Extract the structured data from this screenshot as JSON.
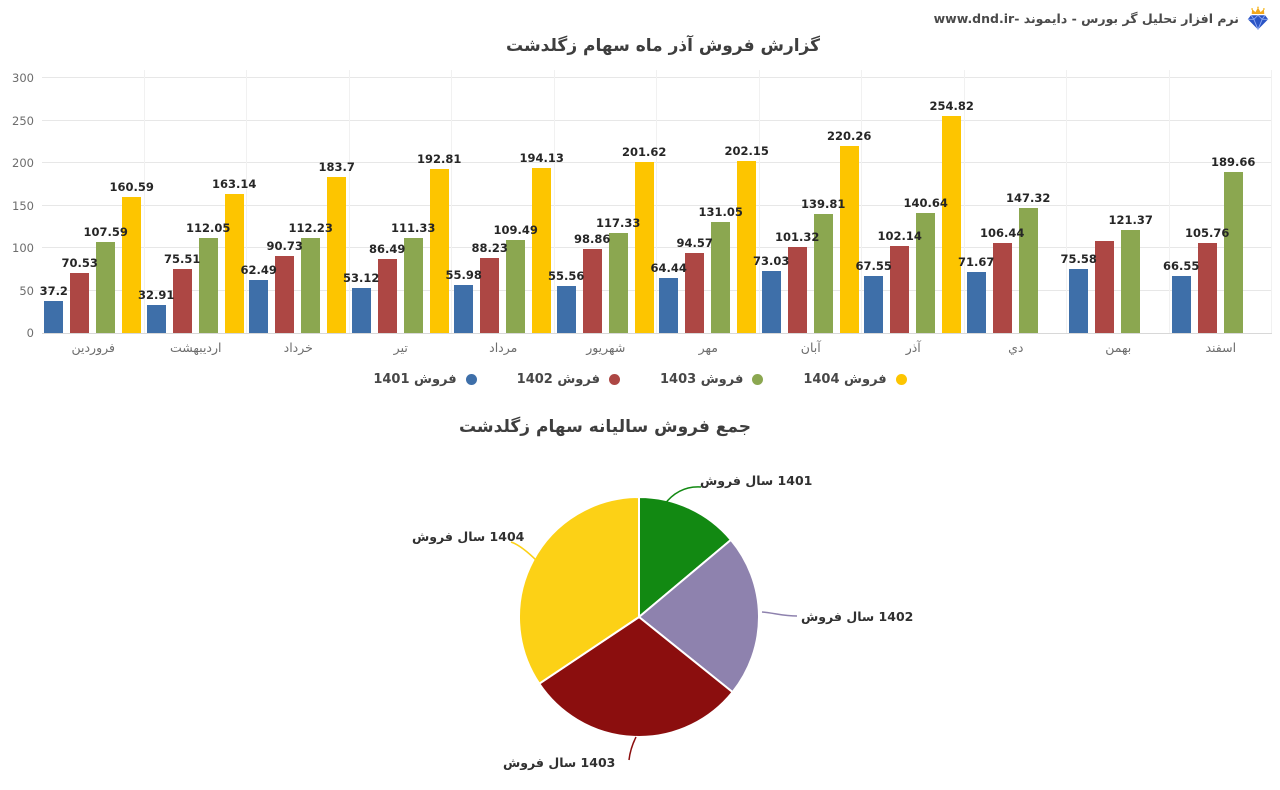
{
  "header": {
    "text": "نرم افزار تحلیل گر بورس - دایموند -www.dnd.ir",
    "logo_icon": "diamond-crown-icon"
  },
  "chart_data": [
    {
      "type": "bar",
      "title": "گزارش فروش آذر ماه سهام زگلدشت",
      "categories": [
        "فروردین",
        "اردیبهشت",
        "خرداد",
        "تیر",
        "مرداد",
        "شهریور",
        "مهر",
        "آبان",
        "آذر",
        "دي",
        "بهمن",
        "اسفند"
      ],
      "series": [
        {
          "name": "فروش 1401",
          "color": "#3e6fa9",
          "values": [
            37.2,
            32.91,
            62.49,
            53.12,
            55.98,
            55.56,
            64.44,
            73.03,
            67.55,
            71.67,
            75.58,
            66.55
          ],
          "labels": [
            "37.2",
            "32.91",
            "62.49",
            "53.12",
            "55.98",
            "55.56",
            "64.44",
            "73.03",
            "67.55",
            "71.67",
            "75.58",
            "66.55"
          ]
        },
        {
          "name": "فروش 1402",
          "color": "#ad4744",
          "values": [
            70.53,
            75.51,
            90.73,
            86.49,
            88.23,
            98.86,
            94.57,
            101.32,
            102.14,
            106.44,
            108,
            105.76
          ],
          "labels": [
            "70.53",
            "75.51",
            "90.73",
            "86.49",
            "88.23",
            "98.86",
            "94.57",
            "101.32",
            "102.14",
            "106.44",
            "",
            "105.76"
          ]
        },
        {
          "name": "فروش 1403",
          "color": "#8ba750",
          "values": [
            107.59,
            112.05,
            112.23,
            111.33,
            109.49,
            117.33,
            131.05,
            139.81,
            140.64,
            147.32,
            121.37,
            189.66
          ],
          "labels": [
            "107.59",
            "112.05",
            "112.23",
            "111.33",
            "109.49",
            "117.33",
            "131.05",
            "139.81",
            "140.64",
            "147.32",
            "121.37",
            "189.66"
          ]
        },
        {
          "name": "فروش 1404",
          "color": "#fdc500",
          "values": [
            160.59,
            163.14,
            183.7,
            192.81,
            194.13,
            201.62,
            202.15,
            220.26,
            254.82,
            null,
            null,
            null
          ],
          "labels": [
            "160.59",
            "163.14",
            "183.7",
            "192.81",
            "194.13",
            "201.62",
            "202.15",
            "220.26",
            "254.82",
            "",
            "",
            ""
          ]
        }
      ],
      "ylim": [
        0,
        300
      ],
      "yticks": [
        0,
        50,
        100,
        150,
        200,
        250,
        300
      ],
      "grid": "on",
      "legend_position": "bottom"
    },
    {
      "type": "pie",
      "title": "جمع فروش سالیانه سهام زگلدشت",
      "slices": [
        {
          "label": "فروش سال 1401",
          "color": "#128912",
          "value": 716.08
        },
        {
          "label": "فروش سال 1402",
          "color": "#8e82ae",
          "value": 1128.58
        },
        {
          "label": "فروش سال 1403",
          "color": "#8b0e0e",
          "value": 1539.87
        },
        {
          "label": "فروش سال 1404",
          "color": "#fcd116",
          "value": 1773.22
        }
      ],
      "start_angle": "top",
      "direction": "clockwise",
      "legend_position": "outside-labels"
    }
  ]
}
